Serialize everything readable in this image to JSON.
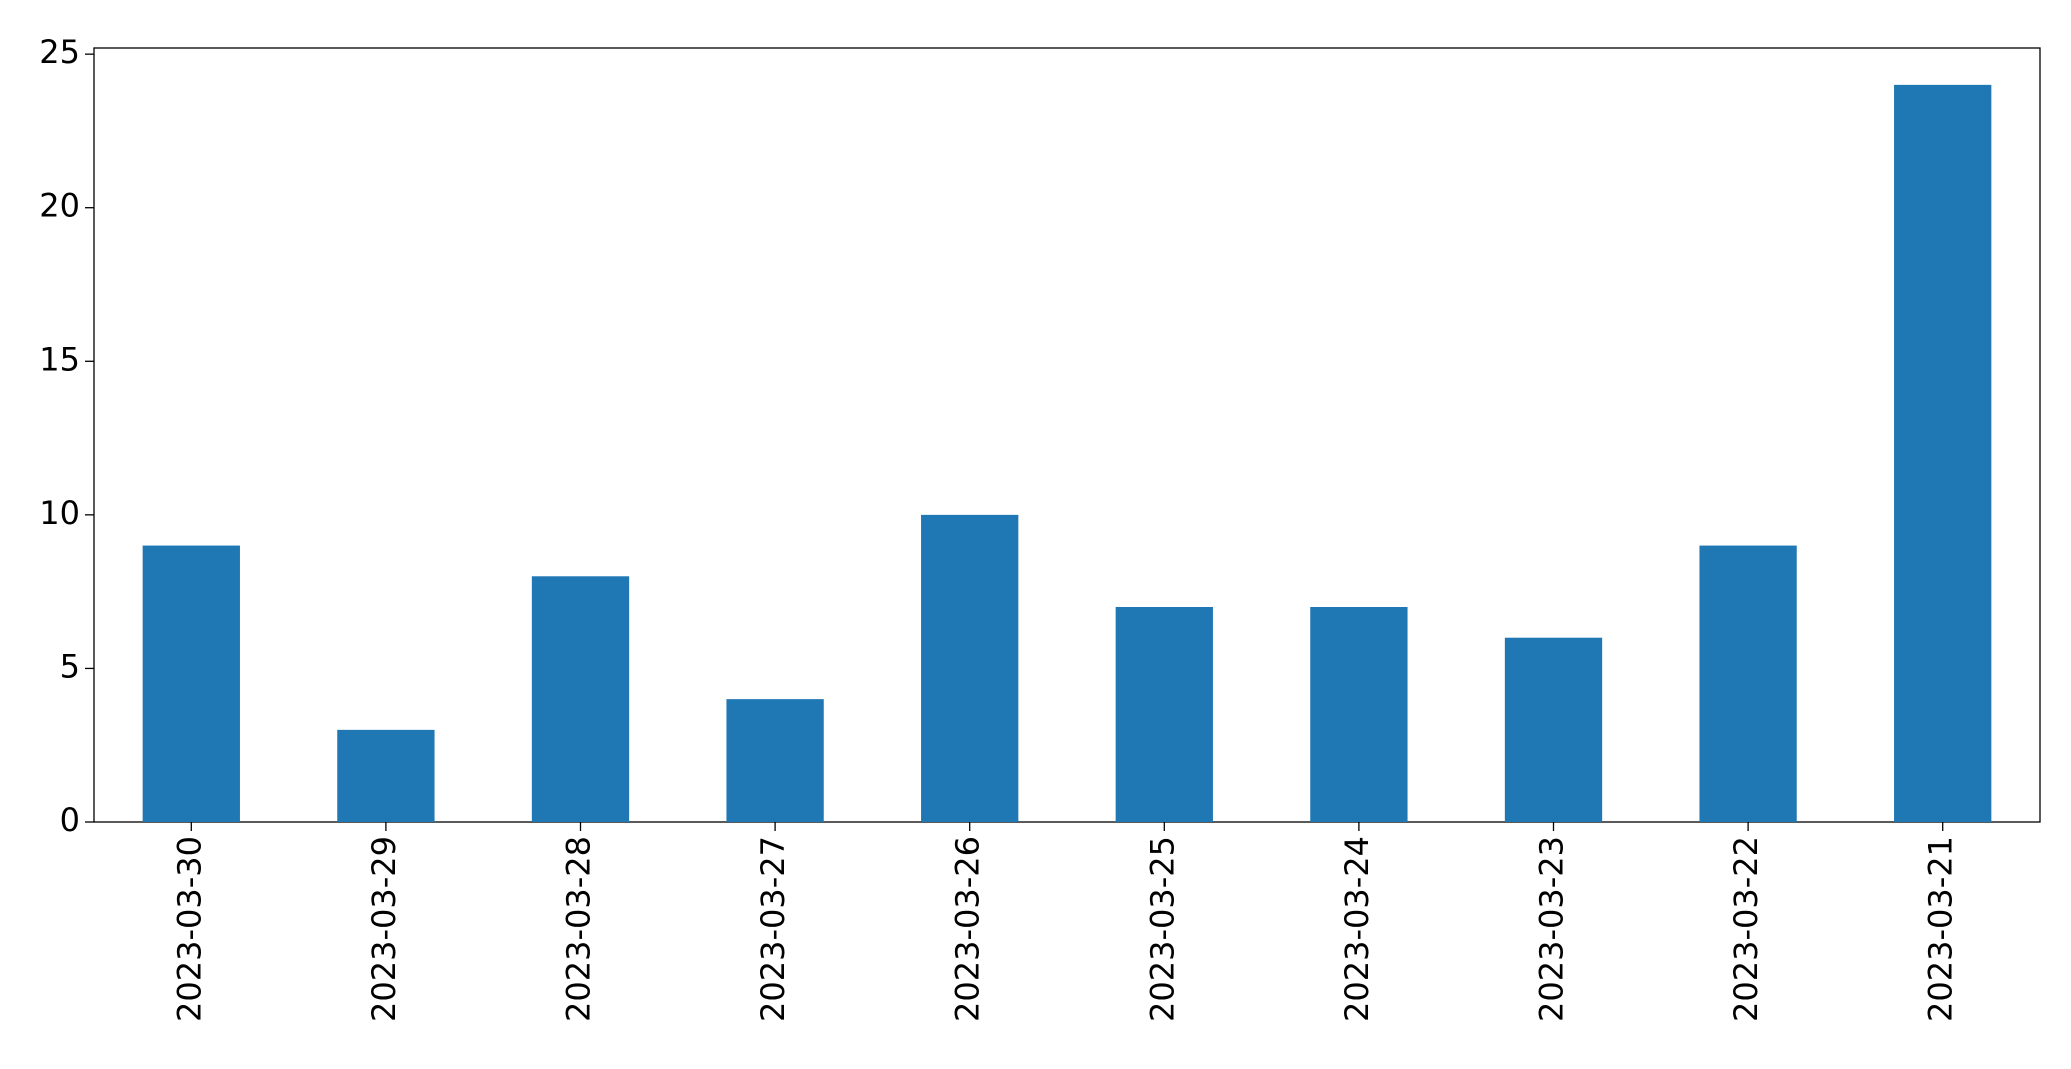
{
  "chart_data": {
    "type": "bar",
    "categories": [
      "2023-03-30",
      "2023-03-29",
      "2023-03-28",
      "2023-03-27",
      "2023-03-26",
      "2023-03-25",
      "2023-03-24",
      "2023-03-23",
      "2023-03-22",
      "2023-03-21"
    ],
    "values": [
      9,
      3,
      8,
      4,
      10,
      7,
      7,
      6,
      9,
      24
    ],
    "color": "#1f77b4",
    "ylim": [
      0,
      25.2
    ],
    "yticks": [
      0,
      5,
      10,
      15,
      20,
      25
    ],
    "grid": false
  }
}
